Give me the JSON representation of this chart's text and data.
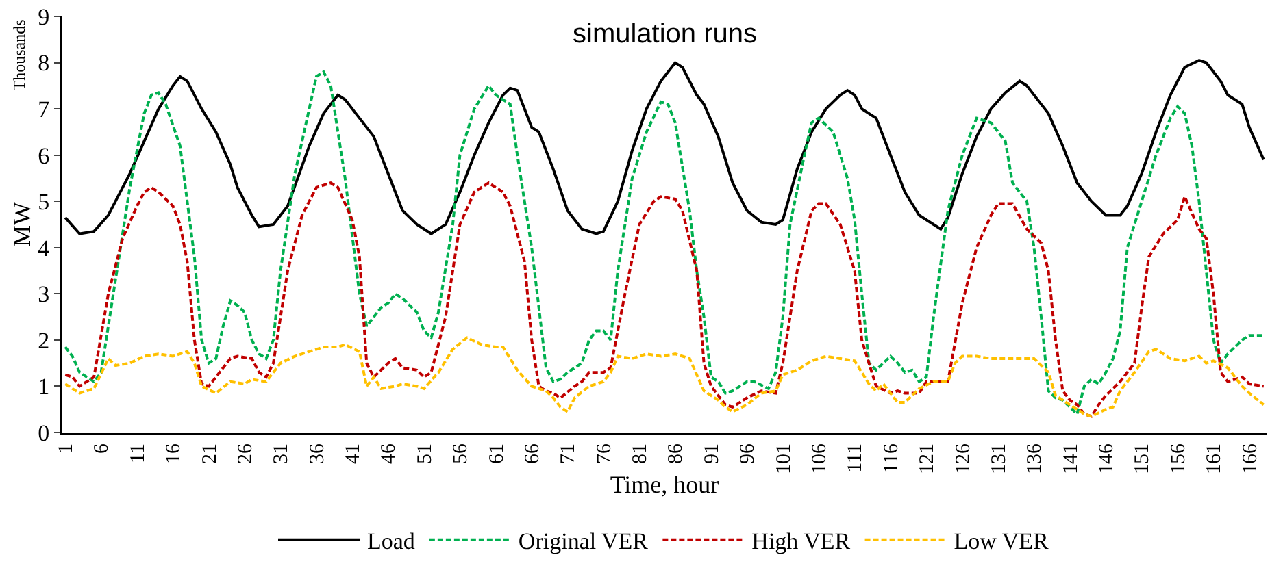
{
  "chart_data": {
    "type": "line",
    "title": "simulation runs",
    "xlabel": "Time, hour",
    "ylabel": "MW",
    "annotations": [
      "Thousands"
    ],
    "xlim": [
      0.5,
      168.5
    ],
    "xticks": [
      1,
      6,
      11,
      16,
      21,
      26,
      31,
      36,
      41,
      46,
      51,
      56,
      61,
      66,
      71,
      76,
      81,
      86,
      91,
      96,
      101,
      106,
      111,
      116,
      121,
      126,
      131,
      136,
      141,
      146,
      151,
      156,
      161,
      166
    ],
    "ylim": [
      0,
      9
    ],
    "yticks": [
      0,
      1,
      2,
      3,
      4,
      5,
      6,
      7,
      8,
      9
    ],
    "grid": false,
    "legend": "bottom",
    "marker": "none",
    "series": [
      {
        "name": "Load",
        "color": "#000000",
        "line_style": "solid",
        "x": [
          1,
          3,
          5,
          7,
          10,
          12,
          14,
          16,
          17,
          18,
          20,
          22,
          24,
          25,
          27,
          28,
          30,
          32,
          35,
          37,
          39,
          40,
          42,
          44,
          46,
          48,
          50,
          52,
          54,
          56,
          58,
          60,
          62,
          63,
          64,
          66,
          67,
          69,
          71,
          73,
          75,
          76,
          78,
          80,
          82,
          84,
          86,
          87,
          89,
          90,
          92,
          94,
          96,
          98,
          100,
          101,
          103,
          105,
          107,
          109,
          110,
          111,
          112,
          114,
          116,
          118,
          120,
          122,
          123,
          124,
          126,
          128,
          130,
          132,
          134,
          135,
          137,
          138,
          140,
          142,
          144,
          146,
          148,
          149,
          151,
          153,
          155,
          157,
          159,
          160,
          162,
          163,
          165,
          166,
          168
        ],
        "values": [
          4.65,
          4.3,
          4.35,
          4.7,
          5.6,
          6.3,
          7.0,
          7.5,
          7.7,
          7.6,
          7.0,
          6.5,
          5.8,
          5.3,
          4.7,
          4.45,
          4.5,
          4.9,
          6.2,
          6.9,
          7.3,
          7.2,
          6.8,
          6.4,
          5.6,
          4.8,
          4.5,
          4.3,
          4.5,
          5.2,
          6.0,
          6.7,
          7.3,
          7.45,
          7.4,
          6.6,
          6.5,
          5.7,
          4.8,
          4.4,
          4.3,
          4.35,
          5.0,
          6.1,
          7.0,
          7.6,
          8.0,
          7.9,
          7.3,
          7.1,
          6.4,
          5.4,
          4.8,
          4.55,
          4.5,
          4.6,
          5.7,
          6.5,
          7.0,
          7.3,
          7.4,
          7.3,
          7.0,
          6.8,
          6.0,
          5.2,
          4.7,
          4.5,
          4.4,
          4.65,
          5.6,
          6.4,
          7.0,
          7.35,
          7.6,
          7.5,
          7.1,
          6.9,
          6.2,
          5.4,
          5.0,
          4.7,
          4.7,
          4.9,
          5.6,
          6.5,
          7.3,
          7.9,
          8.05,
          8.0,
          7.6,
          7.3,
          7.1,
          6.6,
          5.9
        ]
      },
      {
        "name": "Original VER",
        "color": "#00b050",
        "line_style": "dashed",
        "x": [
          1,
          2,
          3,
          4,
          5,
          6,
          8,
          10,
          12,
          13,
          14,
          15,
          17,
          19,
          20,
          21,
          22,
          23,
          24,
          25,
          26,
          27,
          28,
          29,
          30,
          31,
          33,
          35,
          36,
          37,
          38,
          40,
          42,
          43,
          44,
          45,
          46,
          47,
          48,
          50,
          51,
          52,
          53,
          55,
          56,
          58,
          60,
          61,
          63,
          64,
          66,
          68,
          69,
          70,
          71,
          73,
          74,
          75,
          76,
          77,
          78,
          80,
          82,
          84,
          85,
          86,
          88,
          89,
          90,
          91,
          92,
          93,
          94,
          95,
          96,
          97,
          99,
          100,
          101,
          102,
          104,
          105,
          106,
          108,
          110,
          111,
          112,
          113,
          114,
          115,
          116,
          117,
          118,
          119,
          120,
          121,
          122,
          124,
          126,
          128,
          130,
          132,
          133,
          135,
          136,
          137,
          138,
          139,
          140,
          141,
          142,
          143,
          144,
          145,
          146,
          147,
          148,
          149,
          151,
          153,
          155,
          156,
          157,
          158,
          159,
          160,
          161,
          162,
          163,
          165,
          166,
          168
        ],
        "values": [
          1.85,
          1.65,
          1.3,
          1.2,
          1.1,
          1.3,
          3.3,
          5.3,
          6.9,
          7.3,
          7.35,
          7.1,
          6.2,
          3.8,
          2.0,
          1.5,
          1.6,
          2.3,
          2.85,
          2.75,
          2.6,
          2.0,
          1.7,
          1.6,
          2.0,
          3.5,
          5.6,
          7.0,
          7.7,
          7.8,
          7.5,
          5.5,
          3.0,
          2.3,
          2.5,
          2.7,
          2.8,
          3.0,
          2.9,
          2.6,
          2.2,
          2.05,
          2.6,
          4.5,
          6.0,
          7.0,
          7.5,
          7.3,
          7.1,
          6.0,
          4.0,
          1.4,
          1.1,
          1.15,
          1.3,
          1.5,
          2.0,
          2.2,
          2.2,
          2.0,
          3.5,
          5.5,
          6.5,
          7.15,
          7.1,
          6.7,
          4.8,
          3.5,
          2.5,
          1.2,
          1.1,
          0.85,
          0.9,
          1.0,
          1.1,
          1.1,
          0.95,
          1.3,
          2.5,
          4.5,
          6.0,
          6.7,
          6.8,
          6.5,
          5.5,
          4.6,
          3.0,
          1.5,
          1.35,
          1.5,
          1.65,
          1.5,
          1.3,
          1.35,
          1.1,
          1.2,
          2.5,
          4.8,
          6.0,
          6.8,
          6.7,
          6.3,
          5.4,
          5.0,
          4.0,
          2.5,
          0.9,
          0.75,
          0.7,
          0.55,
          0.4,
          1.0,
          1.15,
          1.05,
          1.3,
          1.6,
          2.2,
          4.0,
          5.0,
          6.0,
          6.8,
          7.05,
          6.9,
          6.2,
          5.0,
          3.5,
          2.0,
          1.5,
          1.7,
          2.0,
          2.1,
          2.1
        ]
      },
      {
        "name": "High VER",
        "color": "#c00000",
        "line_style": "dashed",
        "x": [
          1,
          2,
          3,
          5,
          7,
          9,
          11,
          12,
          13,
          14,
          16,
          17,
          18,
          19,
          20,
          21,
          22,
          24,
          25,
          27,
          28,
          29,
          30,
          32,
          34,
          36,
          38,
          39,
          41,
          42,
          43,
          44,
          46,
          47,
          48,
          50,
          51,
          52,
          54,
          56,
          58,
          60,
          62,
          63,
          65,
          66,
          67,
          68,
          69,
          70,
          72,
          73,
          74,
          76,
          77,
          79,
          81,
          83,
          84,
          86,
          87,
          89,
          90,
          91,
          92,
          93,
          94,
          96,
          98,
          100,
          101,
          103,
          105,
          106,
          107,
          109,
          111,
          112,
          114,
          116,
          117,
          118,
          120,
          121,
          122,
          124,
          126,
          128,
          130,
          131,
          133,
          135,
          137,
          138,
          139,
          140,
          141,
          142,
          143,
          144,
          145,
          146,
          148,
          150,
          151,
          152,
          154,
          156,
          157,
          159,
          160,
          161,
          162,
          163,
          165,
          166,
          168
        ],
        "values": [
          1.25,
          1.2,
          1.0,
          1.2,
          3.0,
          4.2,
          4.9,
          5.2,
          5.3,
          5.2,
          4.9,
          4.5,
          3.7,
          2.0,
          1.05,
          1.0,
          1.2,
          1.6,
          1.65,
          1.6,
          1.3,
          1.2,
          1.5,
          3.5,
          4.7,
          5.3,
          5.4,
          5.3,
          4.6,
          3.8,
          1.5,
          1.2,
          1.5,
          1.6,
          1.4,
          1.35,
          1.2,
          1.3,
          2.5,
          4.5,
          5.2,
          5.4,
          5.2,
          4.9,
          3.7,
          2.0,
          1.0,
          0.9,
          0.85,
          0.75,
          1.0,
          1.1,
          1.3,
          1.3,
          1.4,
          3.0,
          4.5,
          5.0,
          5.1,
          5.05,
          4.8,
          3.5,
          1.5,
          1.0,
          0.8,
          0.6,
          0.55,
          0.75,
          0.9,
          0.85,
          1.5,
          3.5,
          4.8,
          4.95,
          4.95,
          4.5,
          3.5,
          2.0,
          1.0,
          0.85,
          0.9,
          0.85,
          0.85,
          1.1,
          1.1,
          1.1,
          2.8,
          4.0,
          4.7,
          4.95,
          4.95,
          4.4,
          4.1,
          3.5,
          2.0,
          0.9,
          0.7,
          0.6,
          0.4,
          0.35,
          0.6,
          0.8,
          1.1,
          1.5,
          2.7,
          3.8,
          4.3,
          4.6,
          5.1,
          4.4,
          4.2,
          3.0,
          1.3,
          1.1,
          1.2,
          1.05,
          1.0
        ]
      },
      {
        "name": "Low VER",
        "color": "#ffc000",
        "line_style": "dashed",
        "x": [
          1,
          3,
          5,
          7,
          8,
          10,
          12,
          14,
          16,
          18,
          19,
          20,
          22,
          24,
          26,
          27,
          29,
          31,
          33,
          35,
          37,
          39,
          40,
          42,
          43,
          44,
          45,
          47,
          48,
          50,
          51,
          53,
          55,
          57,
          59,
          61,
          62,
          64,
          66,
          68,
          69,
          70,
          71,
          72,
          74,
          76,
          77,
          78,
          80,
          82,
          84,
          86,
          88,
          89,
          90,
          92,
          93,
          94,
          96,
          98,
          100,
          101,
          103,
          105,
          107,
          109,
          111,
          113,
          114,
          115,
          116,
          117,
          118,
          120,
          122,
          124,
          125,
          126,
          128,
          130,
          132,
          134,
          136,
          138,
          139,
          141,
          143,
          144,
          146,
          147,
          148,
          150,
          152,
          153,
          155,
          157,
          159,
          160,
          161,
          163,
          165,
          166,
          168
        ],
        "values": [
          1.05,
          0.85,
          0.95,
          1.6,
          1.45,
          1.5,
          1.65,
          1.7,
          1.65,
          1.75,
          1.5,
          1.0,
          0.85,
          1.1,
          1.05,
          1.15,
          1.1,
          1.5,
          1.65,
          1.75,
          1.85,
          1.85,
          1.9,
          1.75,
          1.0,
          1.2,
          0.95,
          1.0,
          1.05,
          1.0,
          0.95,
          1.3,
          1.8,
          2.05,
          1.9,
          1.85,
          1.85,
          1.35,
          1.0,
          0.9,
          0.75,
          0.55,
          0.45,
          0.75,
          1.0,
          1.1,
          1.3,
          1.65,
          1.6,
          1.7,
          1.65,
          1.7,
          1.6,
          1.25,
          0.9,
          0.7,
          0.55,
          0.45,
          0.6,
          0.85,
          0.9,
          1.25,
          1.35,
          1.55,
          1.65,
          1.6,
          1.55,
          1.05,
          0.9,
          1.05,
          0.85,
          0.65,
          0.65,
          0.95,
          1.1,
          1.1,
          1.5,
          1.65,
          1.65,
          1.6,
          1.6,
          1.6,
          1.6,
          1.3,
          0.8,
          0.6,
          0.4,
          0.35,
          0.5,
          0.55,
          0.9,
          1.3,
          1.75,
          1.8,
          1.6,
          1.55,
          1.65,
          1.5,
          1.55,
          1.4,
          1.0,
          0.85,
          0.6
        ]
      }
    ]
  }
}
